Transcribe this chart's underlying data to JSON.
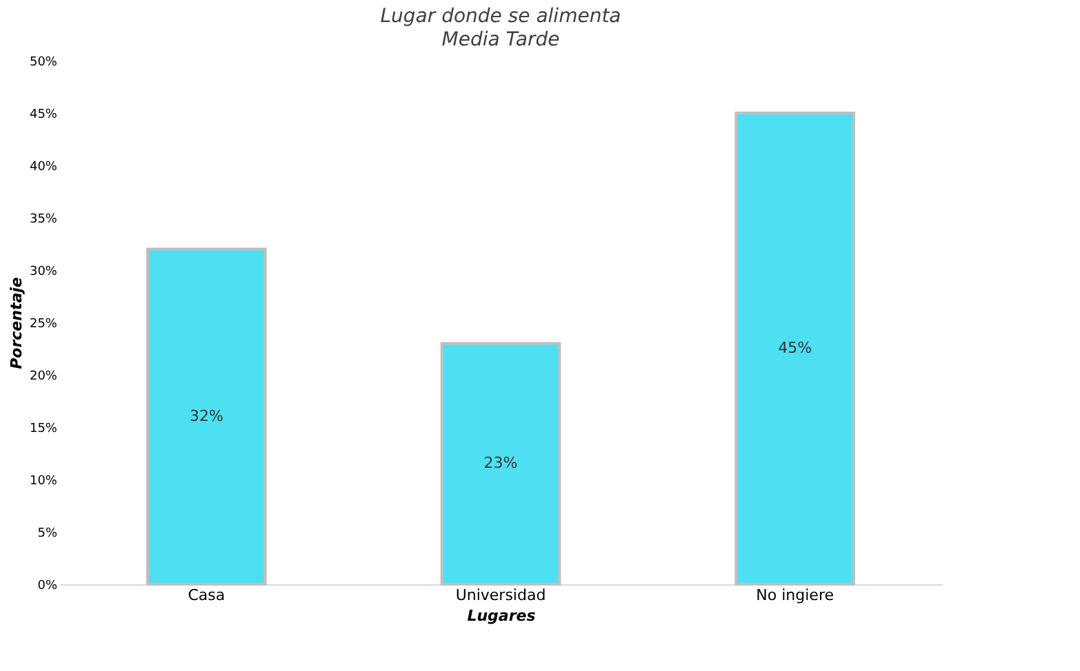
{
  "chart_data": {
    "type": "bar",
    "title": "Lugar donde se alimenta",
    "subtitle": "Media Tarde",
    "xlabel": "Lugares",
    "ylabel": "Porcentaje",
    "categories": [
      "Casa",
      "Universidad",
      "No ingiere"
    ],
    "values": [
      32,
      23,
      45
    ],
    "color": "#4de0f2",
    "value_labels": [
      "32%",
      "23%",
      "45%"
    ],
    "ylim": [
      0,
      50
    ],
    "yticks": [
      {
        "value": 0,
        "label": "0%"
      },
      {
        "value": 5,
        "label": "5%"
      },
      {
        "value": 10,
        "label": "10%"
      },
      {
        "value": 15,
        "label": "15%"
      },
      {
        "value": 20,
        "label": "20%"
      },
      {
        "value": 25,
        "label": "25%"
      },
      {
        "value": 30,
        "label": "30%"
      },
      {
        "value": 35,
        "label": "35%"
      },
      {
        "value": 40,
        "label": "40%"
      },
      {
        "value": 45,
        "label": "45%"
      },
      {
        "value": 50,
        "label": "50%"
      }
    ],
    "grid": false
  }
}
